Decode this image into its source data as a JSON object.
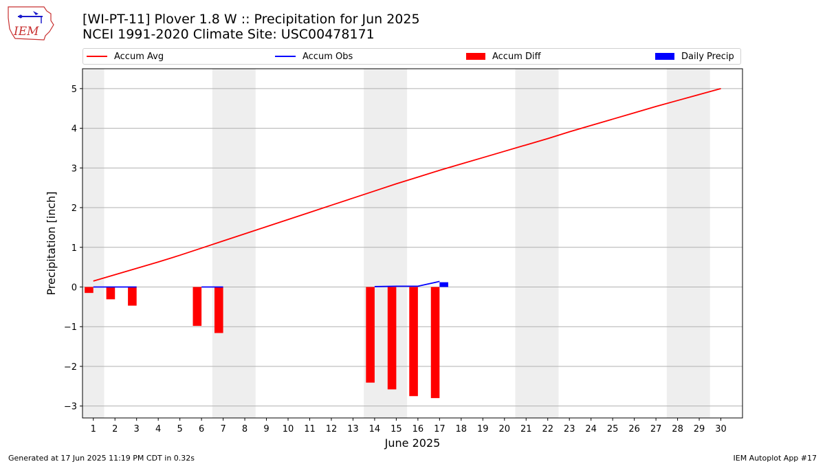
{
  "logo_text": "IEM",
  "title_line1": "[WI-PT-11] Plover 1.8 W :: Precipitation for Jun 2025",
  "title_line2": "NCEI 1991-2020 Climate Site: USC00478171",
  "footer_left": "Generated at 17 Jun 2025 11:19 PM CDT in 0.32s",
  "footer_right": "IEM Autoplot App #17",
  "colors": {
    "avg": "#ff0000",
    "obs": "#0000ff",
    "diff": "#ff0000",
    "daily": "#0000ff",
    "weekend_band": "#eeeeee",
    "grid": "#b0b0b0"
  },
  "chart_data": {
    "type": "bar",
    "xlabel": "June 2025",
    "ylabel": "Precipitation [inch]",
    "xlim": [
      0.5,
      31
    ],
    "ylim": [
      -3.3,
      5.5
    ],
    "x_ticks": [
      1,
      2,
      3,
      4,
      5,
      6,
      7,
      8,
      9,
      10,
      11,
      12,
      13,
      14,
      15,
      16,
      17,
      18,
      19,
      20,
      21,
      22,
      23,
      24,
      25,
      26,
      27,
      28,
      29,
      30
    ],
    "y_ticks": [
      -3,
      -2,
      -1,
      0,
      1,
      2,
      3,
      4,
      5
    ],
    "y_tick_labels": [
      "−3",
      "−2",
      "−1",
      "0",
      "1",
      "2",
      "3",
      "4",
      "5"
    ],
    "grid": "horizontal",
    "legend_placement": "top",
    "weekend_bands": [
      [
        0.5,
        1.5
      ],
      [
        6.5,
        8.5
      ],
      [
        13.5,
        15.5
      ],
      [
        20.5,
        22.5
      ],
      [
        27.5,
        29.5
      ]
    ],
    "legend": [
      "Accum Avg",
      "Accum Obs",
      "Accum Diff",
      "Daily Precip"
    ],
    "series": [
      {
        "name": "Accum Avg",
        "type": "line",
        "x": [
          1,
          2,
          3,
          4,
          5,
          6,
          7,
          8,
          9,
          10,
          11,
          12,
          13,
          14,
          15,
          16,
          17,
          18,
          19,
          20,
          21,
          22,
          23,
          24,
          25,
          26,
          27,
          28,
          29,
          30
        ],
        "values": [
          0.15,
          0.31,
          0.47,
          0.63,
          0.8,
          0.98,
          1.16,
          1.34,
          1.52,
          1.7,
          1.88,
          2.06,
          2.24,
          2.42,
          2.6,
          2.77,
          2.94,
          3.1,
          3.26,
          3.42,
          3.58,
          3.74,
          3.91,
          4.07,
          4.23,
          4.39,
          4.55,
          4.7,
          4.85,
          5.0
        ]
      },
      {
        "name": "Accum Obs",
        "type": "line",
        "segments": [
          {
            "x": [
              1,
              2,
              3
            ],
            "values": [
              0,
              0,
              0
            ]
          },
          {
            "x": [
              6,
              7
            ],
            "values": [
              0,
              0
            ]
          },
          {
            "x": [
              14,
              15,
              16,
              17
            ],
            "values": [
              0.01,
              0.02,
              0.02,
              0.14
            ]
          }
        ]
      },
      {
        "name": "Accum Diff",
        "type": "bar",
        "x": [
          1,
          2,
          3,
          6,
          7,
          14,
          15,
          16,
          17
        ],
        "values": [
          -0.15,
          -0.31,
          -0.47,
          -0.98,
          -1.16,
          -2.41,
          -2.58,
          -2.75,
          -2.8
        ]
      },
      {
        "name": "Daily Precip",
        "type": "bar",
        "x": [
          17
        ],
        "values": [
          0.12
        ]
      }
    ]
  }
}
